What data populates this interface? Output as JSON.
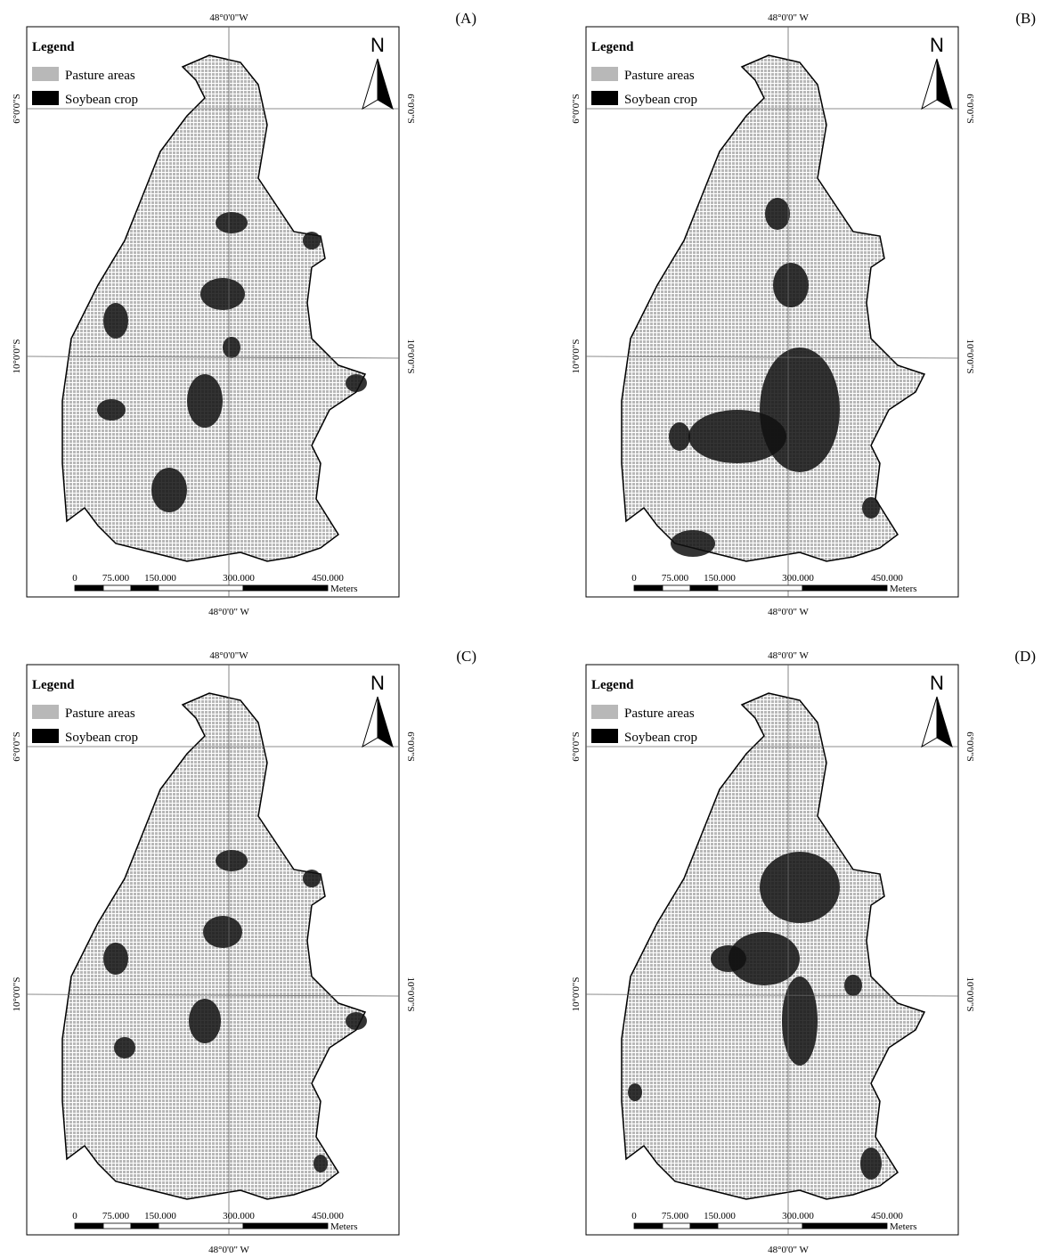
{
  "panels": [
    {
      "label": "(A)",
      "legend": {
        "title": "Legend",
        "items": [
          "Pasture areas",
          "Soybean crop"
        ]
      },
      "north": "N",
      "top_longitude": "48°0'0\"W",
      "bottom_longitude": "48°0'0\" W",
      "left_latitudes": [
        "6°0'0\"S",
        "10°0'0\"S"
      ],
      "right_latitudes": [
        "6°0'0\"S",
        "10°0'0\"S"
      ],
      "scale_labels": [
        "0",
        "75.000",
        "150.000",
        "300.000",
        "450.000"
      ],
      "scale_unit": "Meters"
    },
    {
      "label": "(B)",
      "legend": {
        "title": "Legend",
        "items": [
          "Pasture areas",
          "Soybean crop"
        ]
      },
      "north": "N",
      "top_longitude": "48°0'0\" W",
      "bottom_longitude": "48°0'0\" W",
      "left_latitudes": [
        "6°0'0\"S",
        "10°0'0\"S"
      ],
      "right_latitudes": [
        "6°0'0\"S",
        "10°0'0\"S"
      ],
      "scale_labels": [
        "0",
        "75.000",
        "150.000",
        "300.000",
        "450.000"
      ],
      "scale_unit": "Meters"
    },
    {
      "label": "(C)",
      "legend": {
        "title": "Legend",
        "items": [
          "Pasture areas",
          "Soybean crop"
        ]
      },
      "north": "N",
      "top_longitude": "48°0'0\"W",
      "bottom_longitude": "48°0'0\" W",
      "left_latitudes": [
        "6°0'0\"S",
        "10°0'0\"S"
      ],
      "right_latitudes": [
        "6°0'0\"S",
        "10°0'0\"S"
      ],
      "scale_labels": [
        "0",
        "75.000",
        "150.000",
        "300.000",
        "450.000"
      ],
      "scale_unit": "Meters"
    },
    {
      "label": "(D)",
      "legend": {
        "title": "Legend",
        "items": [
          "Pasture areas",
          "Soybean crop"
        ]
      },
      "north": "N",
      "top_longitude": "48°0'0\" W",
      "bottom_longitude": "48°0'0\" W",
      "left_latitudes": [
        "6°0'0\"S",
        "10°0'0\"S"
      ],
      "right_latitudes": [
        "6°0'0\"S",
        "10°0'0\"S"
      ],
      "scale_labels": [
        "0",
        "75.000",
        "150.000",
        "300.000",
        "450.000"
      ],
      "scale_unit": "Meters"
    }
  ]
}
